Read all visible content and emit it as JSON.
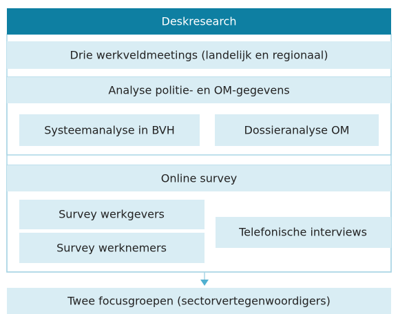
{
  "steps": {
    "deskresearch": "Deskresearch",
    "werkveldmeetings": "Drie werkveldmeetings (landelijk en regionaal)",
    "analyse": {
      "title": "Analyse politie- en OM-gegevens",
      "items": [
        "Systeemanalyse in BVH",
        "Dossieranalyse OM"
      ]
    },
    "survey": {
      "title": "Online survey",
      "items": [
        "Survey werkgevers",
        "Survey werknemers",
        "Telefonische interviews"
      ]
    },
    "focusgroepen": "Twee focusgroepen (sectorvertegenwoordigers)"
  }
}
